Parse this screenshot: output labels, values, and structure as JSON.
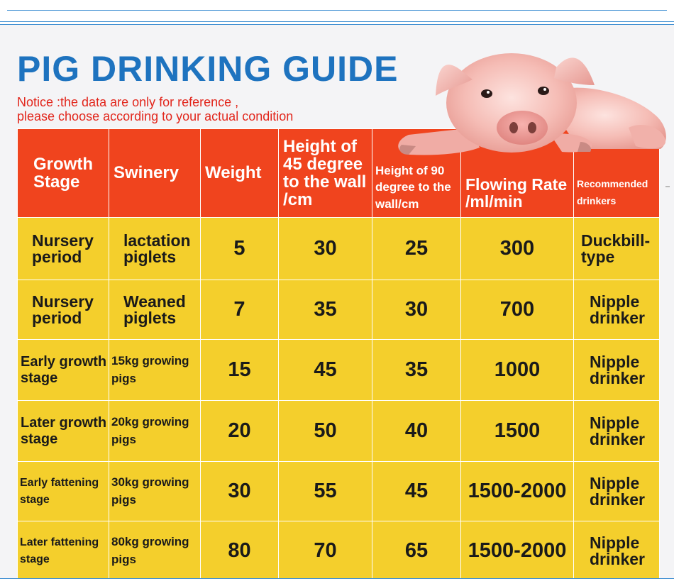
{
  "title": "PIG DRINKING GUIDE",
  "notice": {
    "line1": "Notice :the data are only for reference ,",
    "line2": "please choose according to your actual condition"
  },
  "colors": {
    "title_blue": "#1e73bf",
    "notice_red": "#e2261c",
    "header_orange": "#f0441e",
    "cell_yellow": "#f4cf2c",
    "frame_blue": "#3f8fd2"
  },
  "illustration": "pig-photo",
  "table": {
    "headers": [
      [
        "Growth",
        "Stage"
      ],
      [
        "Swinery"
      ],
      [
        "Weight"
      ],
      [
        "Height of",
        "45 degree",
        "to the wall",
        "/cm"
      ],
      [
        "Height of 90",
        "degree to the",
        "wall/cm"
      ],
      [
        "Flowing Rate",
        "/ml/min"
      ],
      [
        "Recommended",
        "drinkers"
      ]
    ],
    "rows": [
      {
        "stage": [
          "Nursery",
          "period"
        ],
        "swinery": [
          "lactation",
          "piglets"
        ],
        "weight": "5",
        "h45": "30",
        "h90": "25",
        "flow": "300",
        "drinker": [
          "Duckbill-",
          "type"
        ]
      },
      {
        "stage": [
          "Nursery",
          "period"
        ],
        "swinery": [
          "Weaned",
          "piglets"
        ],
        "weight": "7",
        "h45": "35",
        "h90": "30",
        "flow": "700",
        "drinker": [
          "Nipple",
          "drinker"
        ]
      },
      {
        "stage": [
          "Early growth",
          "stage"
        ],
        "swinery": [
          "15kg growing",
          "pigs"
        ],
        "weight": "15",
        "h45": "45",
        "h90": "35",
        "flow": "1000",
        "drinker": [
          "Nipple",
          "drinker"
        ]
      },
      {
        "stage": [
          "Later growth",
          "stage"
        ],
        "swinery": [
          "20kg growing",
          "pigs"
        ],
        "weight": "20",
        "h45": "50",
        "h90": "40",
        "flow": "1500",
        "drinker": [
          "Nipple",
          "drinker"
        ]
      },
      {
        "stage": [
          "Early fattening",
          "stage"
        ],
        "swinery": [
          "30kg growing",
          "pigs"
        ],
        "weight": "30",
        "h45": "55",
        "h90": "45",
        "flow": "1500-2000",
        "drinker": [
          "Nipple",
          "drinker"
        ]
      },
      {
        "stage": [
          "Later fattening",
          "stage"
        ],
        "swinery": [
          "80kg growing",
          "pigs"
        ],
        "weight": "80",
        "h45": "70",
        "h90": "65",
        "flow": "1500-2000",
        "drinker": [
          "Nipple",
          "drinker"
        ]
      }
    ]
  }
}
